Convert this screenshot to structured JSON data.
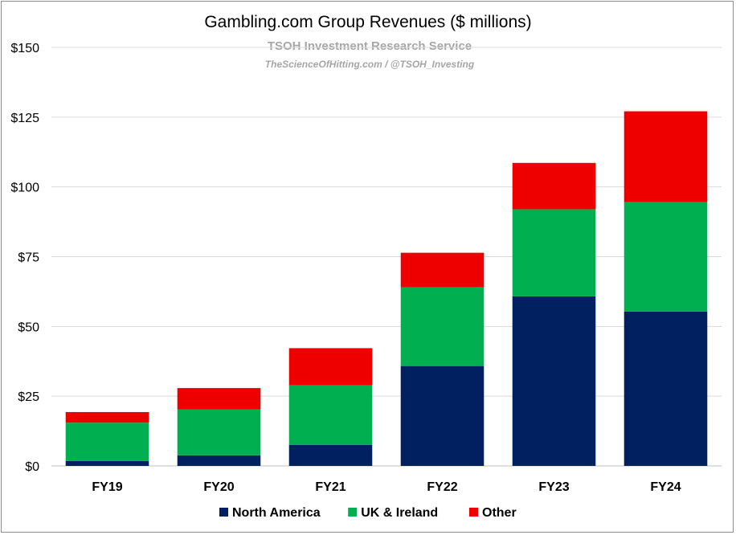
{
  "chart_data": {
    "type": "bar",
    "stacked": true,
    "title": "Gambling.com Group Revenues ($ millions)",
    "watermark": {
      "line1": "TSOH Investment Research Service",
      "line2": "TheScienceOfHitting.com / @TSOH_Investing"
    },
    "categories": [
      "FY19",
      "FY20",
      "FY21",
      "FY22",
      "FY23",
      "FY24"
    ],
    "series": [
      {
        "name": "North America",
        "color": "#002060",
        "values": [
          1.8,
          3.8,
          7.5,
          35.8,
          60.8,
          55.3
        ]
      },
      {
        "name": "UK & Ireland",
        "color": "#00b050",
        "values": [
          13.7,
          16.5,
          21.4,
          28.2,
          31.2,
          39.3
        ]
      },
      {
        "name": "Other",
        "color": "#ee0000",
        "values": [
          3.8,
          7.6,
          13.3,
          12.4,
          16.6,
          32.5
        ]
      }
    ],
    "ylim": [
      0,
      150
    ],
    "yticks": [
      0,
      25,
      50,
      75,
      100,
      125,
      150
    ],
    "ytick_labels": [
      "$0",
      "$25",
      "$50",
      "$75",
      "$100",
      "$125",
      "$150"
    ],
    "grid": true,
    "legend_position": "bottom"
  }
}
